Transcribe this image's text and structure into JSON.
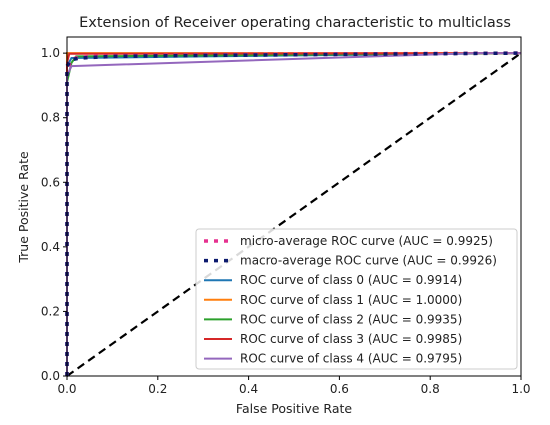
{
  "chart_data": {
    "type": "line",
    "title": "Extension of Receiver operating characteristic to multiclass",
    "xlabel": "False Positive Rate",
    "ylabel": "True Positive Rate",
    "xlim": [
      0.0,
      1.0
    ],
    "ylim": [
      0.0,
      1.05
    ],
    "xticks": [
      0.0,
      0.2,
      0.4,
      0.6,
      0.8,
      1.0
    ],
    "yticks": [
      0.0,
      0.2,
      0.4,
      0.6,
      0.8,
      1.0
    ],
    "xtick_labels": [
      "0.0",
      "0.2",
      "0.4",
      "0.6",
      "0.8",
      "1.0"
    ],
    "ytick_labels": [
      "0.0",
      "0.2",
      "0.4",
      "0.6",
      "0.8",
      "1.0"
    ],
    "grid": false,
    "legend_position": "lower-right",
    "series": [
      {
        "name": "micro-average ROC curve (AUC = 0.9925)",
        "color": "#e6308f",
        "style": "dotted",
        "x": [
          0.0,
          0.0,
          0.01,
          0.02,
          0.05,
          0.2,
          0.5,
          1.0
        ],
        "y": [
          0.0,
          0.95,
          0.98,
          0.985,
          0.99,
          0.993,
          0.997,
          1.0
        ]
      },
      {
        "name": "macro-average ROC curve (AUC = 0.9926)",
        "color": "#0c1a6e",
        "style": "dotted",
        "x": [
          0.0,
          0.0,
          0.01,
          0.03,
          0.1,
          0.3,
          0.6,
          1.0
        ],
        "y": [
          0.0,
          0.96,
          0.98,
          0.985,
          0.99,
          0.993,
          0.996,
          1.0
        ]
      },
      {
        "name": "ROC curve of class 0 (AUC = 0.9914)",
        "color": "#1f77b4",
        "style": "solid",
        "x": [
          0.0,
          0.0,
          0.01,
          0.3,
          1.0
        ],
        "y": [
          0.0,
          0.96,
          0.985,
          0.99,
          1.0
        ]
      },
      {
        "name": "ROC curve of class 1 (AUC = 1.0000)",
        "color": "#ff7f0e",
        "style": "solid",
        "x": [
          0.0,
          0.0,
          1.0
        ],
        "y": [
          0.0,
          1.0,
          1.0
        ]
      },
      {
        "name": "ROC curve of class 2 (AUC = 0.9935)",
        "color": "#2ca02c",
        "style": "solid",
        "x": [
          0.0,
          0.0,
          0.01,
          0.02,
          1.0
        ],
        "y": [
          0.0,
          0.91,
          0.97,
          0.99,
          1.0
        ]
      },
      {
        "name": "ROC curve of class 3 (AUC = 0.9985)",
        "color": "#d62728",
        "style": "solid",
        "x": [
          0.0,
          0.0,
          0.005,
          1.0
        ],
        "y": [
          0.0,
          0.97,
          0.998,
          1.0
        ]
      },
      {
        "name": "ROC curve of class 4 (AUC = 0.9795)",
        "color": "#9467bd",
        "style": "solid",
        "x": [
          0.0,
          0.0,
          0.01,
          0.9,
          1.0
        ],
        "y": [
          0.0,
          0.93,
          0.96,
          1.0,
          1.0
        ]
      }
    ],
    "reference_line": {
      "color": "#000000",
      "style": "dashed",
      "x": [
        0.0,
        1.0
      ],
      "y": [
        0.0,
        1.0
      ]
    }
  }
}
